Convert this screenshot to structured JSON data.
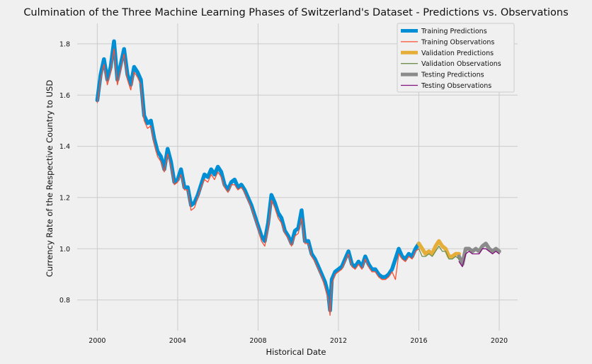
{
  "chart_data": {
    "type": "line",
    "title": "Culmination of the Three Machine Learning Phases of Switzerland's Dataset - Predictions vs. Observations",
    "xlabel": "Historical Date",
    "ylabel": "Currency Rate of the Respective Country to USD",
    "xlim": [
      "1999-01",
      "2020-12"
    ],
    "ylim": [
      0.68,
      1.88
    ],
    "x_ticks": [
      "2000",
      "2004",
      "2008",
      "2012",
      "2016",
      "2020"
    ],
    "y_ticks": [
      "0.8",
      "1.0",
      "1.2",
      "1.4",
      "1.6",
      "1.8"
    ],
    "grid": true,
    "legend_position": "top-right",
    "series": [
      {
        "name": "Training Predictions",
        "color": "#008fd5",
        "style": "thick",
        "x": [
          "2000-01",
          "2000-03",
          "2000-05",
          "2000-07",
          "2000-09",
          "2000-11",
          "2001-01",
          "2001-03",
          "2001-05",
          "2001-07",
          "2001-09",
          "2001-11",
          "2002-01",
          "2002-03",
          "2002-05",
          "2002-07",
          "2002-09",
          "2002-11",
          "2003-01",
          "2003-03",
          "2003-05",
          "2003-07",
          "2003-09",
          "2003-11",
          "2004-01",
          "2004-03",
          "2004-05",
          "2004-07",
          "2004-09",
          "2004-11",
          "2005-01",
          "2005-03",
          "2005-05",
          "2005-07",
          "2005-09",
          "2005-11",
          "2006-01",
          "2006-03",
          "2006-05",
          "2006-07",
          "2006-09",
          "2006-11",
          "2007-01",
          "2007-03",
          "2007-05",
          "2007-07",
          "2007-09",
          "2007-11",
          "2008-01",
          "2008-03",
          "2008-05",
          "2008-07",
          "2008-09",
          "2008-11",
          "2009-01",
          "2009-03",
          "2009-05",
          "2009-07",
          "2009-09",
          "2009-11",
          "2010-01",
          "2010-03",
          "2010-05",
          "2010-07",
          "2010-09",
          "2010-11",
          "2011-01",
          "2011-03",
          "2011-05",
          "2011-07",
          "2011-08",
          "2011-09",
          "2011-11",
          "2012-01",
          "2012-03",
          "2012-05",
          "2012-07",
          "2012-09",
          "2012-11",
          "2013-01",
          "2013-03",
          "2013-05",
          "2013-07",
          "2013-09",
          "2013-11",
          "2014-01",
          "2014-03",
          "2014-05",
          "2014-07",
          "2014-09",
          "2014-11",
          "2015-01",
          "2015-03",
          "2015-05",
          "2015-07",
          "2015-09",
          "2015-11",
          "2016-01"
        ],
        "y": [
          1.58,
          1.68,
          1.74,
          1.66,
          1.71,
          1.81,
          1.66,
          1.72,
          1.78,
          1.68,
          1.64,
          1.71,
          1.69,
          1.66,
          1.52,
          1.49,
          1.5,
          1.43,
          1.38,
          1.36,
          1.31,
          1.39,
          1.34,
          1.26,
          1.27,
          1.31,
          1.24,
          1.24,
          1.17,
          1.18,
          1.21,
          1.25,
          1.29,
          1.28,
          1.31,
          1.29,
          1.32,
          1.3,
          1.25,
          1.23,
          1.26,
          1.27,
          1.24,
          1.25,
          1.23,
          1.2,
          1.17,
          1.13,
          1.09,
          1.05,
          1.03,
          1.1,
          1.21,
          1.18,
          1.14,
          1.12,
          1.07,
          1.05,
          1.02,
          1.07,
          1.08,
          1.15,
          1.03,
          1.03,
          0.98,
          0.96,
          0.93,
          0.9,
          0.87,
          0.82,
          0.76,
          0.88,
          0.91,
          0.92,
          0.93,
          0.96,
          0.99,
          0.94,
          0.93,
          0.95,
          0.93,
          0.97,
          0.94,
          0.92,
          0.92,
          0.9,
          0.89,
          0.89,
          0.9,
          0.92,
          0.96,
          1.0,
          0.97,
          0.96,
          0.98,
          0.97,
          1.0,
          1.02
        ]
      },
      {
        "name": "Training Observations",
        "color": "#fc4f30",
        "style": "thin",
        "x": [
          "2000-01",
          "2000-03",
          "2000-05",
          "2000-07",
          "2000-09",
          "2000-11",
          "2001-01",
          "2001-03",
          "2001-05",
          "2001-07",
          "2001-09",
          "2001-11",
          "2002-01",
          "2002-03",
          "2002-05",
          "2002-07",
          "2002-09",
          "2002-11",
          "2003-01",
          "2003-03",
          "2003-05",
          "2003-07",
          "2003-09",
          "2003-11",
          "2004-01",
          "2004-03",
          "2004-05",
          "2004-07",
          "2004-09",
          "2004-11",
          "2005-01",
          "2005-03",
          "2005-05",
          "2005-07",
          "2005-09",
          "2005-11",
          "2006-01",
          "2006-03",
          "2006-05",
          "2006-07",
          "2006-09",
          "2006-11",
          "2007-01",
          "2007-03",
          "2007-05",
          "2007-07",
          "2007-09",
          "2007-11",
          "2008-01",
          "2008-03",
          "2008-05",
          "2008-07",
          "2008-09",
          "2008-11",
          "2009-01",
          "2009-03",
          "2009-05",
          "2009-07",
          "2009-09",
          "2009-11",
          "2010-01",
          "2010-03",
          "2010-05",
          "2010-07",
          "2010-09",
          "2010-11",
          "2011-01",
          "2011-03",
          "2011-05",
          "2011-07",
          "2011-08",
          "2011-09",
          "2011-11",
          "2012-01",
          "2012-03",
          "2012-05",
          "2012-07",
          "2012-09",
          "2012-11",
          "2013-01",
          "2013-03",
          "2013-05",
          "2013-07",
          "2013-09",
          "2013-11",
          "2014-01",
          "2014-03",
          "2014-05",
          "2014-07",
          "2014-09",
          "2014-11",
          "2015-01",
          "2015-03",
          "2015-05",
          "2015-07",
          "2015-09",
          "2015-11",
          "2016-01"
        ],
        "y": [
          1.57,
          1.66,
          1.72,
          1.64,
          1.69,
          1.78,
          1.64,
          1.7,
          1.76,
          1.66,
          1.62,
          1.69,
          1.67,
          1.64,
          1.5,
          1.47,
          1.48,
          1.41,
          1.36,
          1.34,
          1.3,
          1.37,
          1.32,
          1.25,
          1.26,
          1.29,
          1.23,
          1.23,
          1.15,
          1.16,
          1.2,
          1.24,
          1.27,
          1.26,
          1.29,
          1.27,
          1.3,
          1.28,
          1.24,
          1.22,
          1.25,
          1.25,
          1.23,
          1.24,
          1.22,
          1.19,
          1.16,
          1.12,
          1.08,
          1.03,
          1.01,
          1.08,
          1.19,
          1.16,
          1.12,
          1.1,
          1.06,
          1.04,
          1.01,
          1.05,
          1.06,
          1.12,
          1.02,
          1.02,
          0.97,
          0.95,
          0.92,
          0.89,
          0.85,
          0.8,
          0.74,
          0.86,
          0.9,
          0.91,
          0.92,
          0.95,
          0.98,
          0.93,
          0.92,
          0.94,
          0.92,
          0.96,
          0.93,
          0.91,
          0.91,
          0.89,
          0.88,
          0.88,
          0.89,
          0.91,
          0.88,
          0.98,
          0.96,
          0.95,
          0.97,
          0.96,
          0.99,
          1.0
        ]
      },
      {
        "name": "Validation Predictions",
        "color": "#e5ae38",
        "style": "thick",
        "x": [
          "2016-01",
          "2016-03",
          "2016-05",
          "2016-07",
          "2016-09",
          "2016-11",
          "2017-01",
          "2017-03",
          "2017-05",
          "2017-07",
          "2017-09",
          "2017-11",
          "2018-01"
        ],
        "y": [
          1.02,
          1.0,
          0.98,
          0.99,
          0.98,
          1.01,
          1.03,
          1.01,
          1.0,
          0.97,
          0.97,
          0.98,
          0.98
        ]
      },
      {
        "name": "Validation Observations",
        "color": "#6d904f",
        "style": "thin",
        "x": [
          "2016-01",
          "2016-03",
          "2016-05",
          "2016-07",
          "2016-09",
          "2016-11",
          "2017-01",
          "2017-03",
          "2017-05",
          "2017-07",
          "2017-09",
          "2017-11",
          "2018-01"
        ],
        "y": [
          1.0,
          0.97,
          0.97,
          0.98,
          0.97,
          0.99,
          1.01,
          0.99,
          0.99,
          0.96,
          0.96,
          0.97,
          0.96
        ]
      },
      {
        "name": "Testing Predictions",
        "color": "#8b8b8b",
        "style": "thick",
        "x": [
          "2018-01",
          "2018-03",
          "2018-05",
          "2018-07",
          "2018-09",
          "2018-11",
          "2019-01",
          "2019-03",
          "2019-05",
          "2019-07",
          "2019-09",
          "2019-11",
          "2020-01"
        ],
        "y": [
          0.97,
          0.94,
          1.0,
          1.0,
          0.99,
          1.0,
          0.99,
          1.01,
          1.02,
          1.0,
          0.99,
          1.0,
          0.99
        ]
      },
      {
        "name": "Testing Observations",
        "color": "#810f7c",
        "style": "thin",
        "x": [
          "2018-01",
          "2018-03",
          "2018-05",
          "2018-07",
          "2018-09",
          "2018-11",
          "2019-01",
          "2019-03",
          "2019-05",
          "2019-07",
          "2019-09",
          "2019-11",
          "2020-01"
        ],
        "y": [
          0.95,
          0.93,
          0.98,
          0.99,
          0.98,
          0.98,
          0.98,
          1.0,
          1.0,
          0.99,
          0.98,
          0.99,
          0.98
        ]
      }
    ]
  }
}
